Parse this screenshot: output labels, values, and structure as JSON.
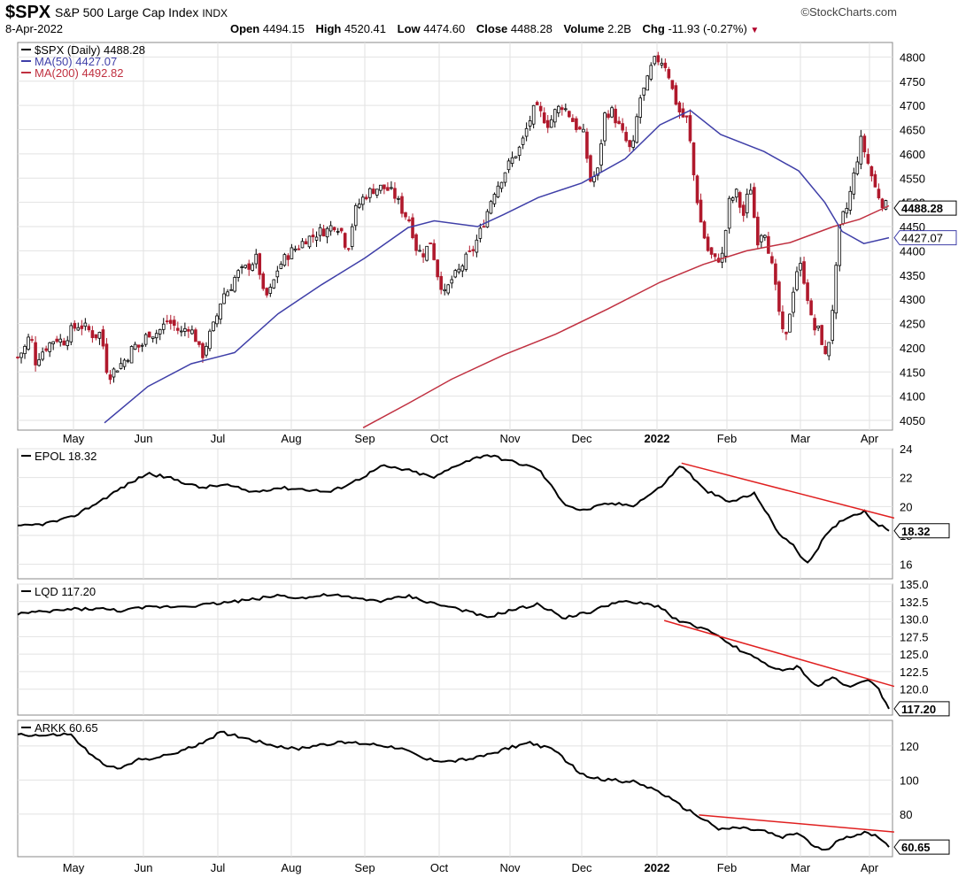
{
  "header": {
    "symbol": "$SPX",
    "name": "S&P 500 Large Cap Index",
    "exchange": "INDX",
    "credit": "©StockCharts.com",
    "date": "8-Apr-2022",
    "open_label": "Open",
    "open": "4494.15",
    "high_label": "High",
    "high": "4520.41",
    "low_label": "Low",
    "low": "4474.60",
    "close_label": "Close",
    "close": "4488.28",
    "volume_label": "Volume",
    "volume": "2.2B",
    "chg_label": "Chg",
    "chg": "-11.93 (-0.27%)",
    "chg_icon": "down-triangle-icon"
  },
  "chart_data": [
    {
      "type": "candlestick",
      "legend": [
        {
          "label": "$SPX (Daily) 4488.28",
          "color": "#000000"
        },
        {
          "label": "MA(50) 4427.07",
          "color": "#3f3fa8"
        },
        {
          "label": "MA(200) 4492.82",
          "color": "#c03040"
        }
      ],
      "ylim": [
        4030,
        4830
      ],
      "yticks": [
        4050,
        4100,
        4150,
        4200,
        4250,
        4300,
        4350,
        4400,
        4450,
        4500,
        4550,
        4600,
        4650,
        4700,
        4750,
        4800
      ],
      "ytick_labels": [
        "4050",
        "4100",
        "4150",
        "4200",
        "4250",
        "4300",
        "4350",
        "4400",
        "4450",
        "4500",
        "4550",
        "4600",
        "4650",
        "4700",
        "4750",
        "4800"
      ],
      "callouts": [
        {
          "label": "4488.28",
          "value": 4488.28
        },
        {
          "label": "4427.07",
          "value": 4427.07
        }
      ],
      "xlabels": [
        "May",
        "Jun",
        "Jul",
        "Aug",
        "Sep",
        "Oct",
        "Nov",
        "Dec",
        "2022",
        "Feb",
        "Mar",
        "Apr"
      ],
      "close_series": [
        [
          0,
          4180
        ],
        [
          8,
          4200
        ],
        [
          15,
          4230
        ],
        [
          20,
          4170
        ],
        [
          25,
          4185
        ],
        [
          32,
          4200
        ],
        [
          40,
          4215
        ],
        [
          47,
          4220
        ],
        [
          52,
          4210
        ],
        [
          62,
          4237
        ],
        [
          70,
          4247
        ],
        [
          80,
          4240
        ],
        [
          88,
          4223
        ],
        [
          96,
          4232
        ],
        [
          104,
          4140
        ],
        [
          112,
          4155
        ],
        [
          118,
          4165
        ],
        [
          126,
          4180
        ],
        [
          134,
          4205
        ],
        [
          142,
          4200
        ],
        [
          150,
          4232
        ],
        [
          158,
          4228
        ],
        [
          166,
          4240
        ],
        [
          172,
          4255
        ],
        [
          180,
          4246
        ],
        [
          188,
          4230
        ],
        [
          196,
          4246
        ],
        [
          204,
          4225
        ],
        [
          212,
          4180
        ],
        [
          220,
          4221
        ],
        [
          228,
          4255
        ],
        [
          236,
          4310
        ],
        [
          244,
          4320
        ],
        [
          252,
          4352
        ],
        [
          260,
          4360
        ],
        [
          268,
          4372
        ],
        [
          276,
          4386
        ],
        [
          284,
          4300
        ],
        [
          292,
          4320
        ],
        [
          300,
          4365
        ],
        [
          308,
          4385
        ],
        [
          316,
          4400
        ],
        [
          324,
          4410
        ],
        [
          332,
          4425
        ],
        [
          340,
          4430
        ],
        [
          348,
          4440
        ],
        [
          356,
          4442
        ],
        [
          364,
          4455
        ],
        [
          372,
          4447
        ],
        [
          380,
          4400
        ],
        [
          388,
          4480
        ],
        [
          396,
          4505
        ],
        [
          404,
          4520
        ],
        [
          412,
          4529
        ],
        [
          420,
          4531
        ],
        [
          428,
          4525
        ],
        [
          436,
          4510
        ],
        [
          444,
          4480
        ],
        [
          452,
          4462
        ],
        [
          460,
          4400
        ],
        [
          468,
          4395
        ],
        [
          476,
          4420
        ],
        [
          484,
          4350
        ],
        [
          492,
          4310
        ],
        [
          500,
          4340
        ],
        [
          508,
          4357
        ],
        [
          516,
          4382
        ],
        [
          524,
          4400
        ],
        [
          532,
          4434
        ],
        [
          540,
          4475
        ],
        [
          548,
          4520
        ],
        [
          556,
          4545
        ],
        [
          564,
          4573
        ],
        [
          572,
          4595
        ],
        [
          580,
          4616
        ],
        [
          588,
          4660
        ],
        [
          596,
          4696
        ],
        [
          604,
          4680
        ],
        [
          612,
          4660
        ],
        [
          620,
          4690
        ],
        [
          628,
          4701
        ],
        [
          636,
          4680
        ],
        [
          644,
          4655
        ],
        [
          652,
          4640
        ],
        [
          660,
          4545
        ],
        [
          668,
          4560
        ],
        [
          676,
          4680
        ],
        [
          684,
          4690
        ],
        [
          692,
          4660
        ],
        [
          700,
          4630
        ],
        [
          708,
          4600
        ],
        [
          716,
          4710
        ],
        [
          724,
          4740
        ],
        [
          732,
          4790
        ],
        [
          740,
          4796
        ],
        [
          748,
          4780
        ],
        [
          756,
          4720
        ],
        [
          764,
          4680
        ],
        [
          772,
          4670
        ],
        [
          780,
          4540
        ],
        [
          788,
          4450
        ],
        [
          796,
          4397
        ],
        [
          804,
          4380
        ],
        [
          812,
          4390
        ],
        [
          820,
          4500
        ],
        [
          828,
          4520
        ],
        [
          836,
          4470
        ],
        [
          844,
          4540
        ],
        [
          852,
          4420
        ],
        [
          860,
          4450
        ],
        [
          868,
          4380
        ],
        [
          876,
          4290
        ],
        [
          884,
          4200
        ],
        [
          892,
          4305
        ],
        [
          900,
          4380
        ],
        [
          908,
          4330
        ],
        [
          916,
          4240
        ],
        [
          924,
          4235
        ],
        [
          932,
          4170
        ],
        [
          940,
          4300
        ],
        [
          948,
          4460
        ],
        [
          956,
          4490
        ],
        [
          964,
          4560
        ],
        [
          972,
          4630
        ],
        [
          980,
          4580
        ],
        [
          988,
          4530
        ],
        [
          996,
          4500
        ],
        [
          1004,
          4488
        ]
      ],
      "ma50_series": [
        [
          100,
          4045
        ],
        [
          150,
          4120
        ],
        [
          200,
          4167
        ],
        [
          250,
          4190
        ],
        [
          300,
          4270
        ],
        [
          350,
          4330
        ],
        [
          400,
          4385
        ],
        [
          450,
          4448
        ],
        [
          480,
          4462
        ],
        [
          530,
          4450
        ],
        [
          560,
          4475
        ],
        [
          600,
          4510
        ],
        [
          650,
          4540
        ],
        [
          700,
          4590
        ],
        [
          740,
          4660
        ],
        [
          775,
          4690
        ],
        [
          810,
          4640
        ],
        [
          860,
          4605
        ],
        [
          900,
          4565
        ],
        [
          930,
          4500
        ],
        [
          950,
          4440
        ],
        [
          975,
          4415
        ],
        [
          1004,
          4427
        ]
      ],
      "ma200_series": [
        [
          398,
          4035
        ],
        [
          450,
          4085
        ],
        [
          500,
          4135
        ],
        [
          560,
          4185
        ],
        [
          620,
          4228
        ],
        [
          680,
          4280
        ],
        [
          740,
          4335
        ],
        [
          790,
          4372
        ],
        [
          840,
          4400
        ],
        [
          890,
          4417
        ],
        [
          940,
          4450
        ],
        [
          970,
          4465
        ],
        [
          1004,
          4493
        ]
      ]
    },
    {
      "type": "line",
      "legend": [
        {
          "label": "EPOL 18.32",
          "color": "#000000"
        }
      ],
      "ylim": [
        15,
        24
      ],
      "yticks": [
        16,
        18,
        20,
        22,
        24
      ],
      "ytick_labels": [
        "16",
        "18",
        "20",
        "22",
        "24"
      ],
      "callout": {
        "label": "18.32",
        "value": 18.32
      },
      "series_values": [
        [
          0,
          18.6
        ],
        [
          30,
          18.8
        ],
        [
          60,
          19.2
        ],
        [
          90,
          20.2
        ],
        [
          120,
          21.3
        ],
        [
          150,
          22.3
        ],
        [
          180,
          21.9
        ],
        [
          210,
          21.3
        ],
        [
          240,
          21.5
        ],
        [
          270,
          21.0
        ],
        [
          300,
          21.3
        ],
        [
          330,
          21.2
        ],
        [
          360,
          21.0
        ],
        [
          390,
          21.8
        ],
        [
          420,
          22.8
        ],
        [
          450,
          22.5
        ],
        [
          480,
          22.0
        ],
        [
          510,
          23.0
        ],
        [
          540,
          23.6
        ],
        [
          570,
          23.1
        ],
        [
          600,
          22.6
        ],
        [
          630,
          20.2
        ],
        [
          650,
          19.7
        ],
        [
          680,
          20.2
        ],
        [
          710,
          20.1
        ],
        [
          740,
          21.3
        ],
        [
          765,
          22.9
        ],
        [
          790,
          21.2
        ],
        [
          820,
          20.3
        ],
        [
          850,
          20.9
        ],
        [
          875,
          18.3
        ],
        [
          895,
          17.2
        ],
        [
          910,
          16.0
        ],
        [
          930,
          17.9
        ],
        [
          950,
          19.1
        ],
        [
          975,
          19.7
        ],
        [
          990,
          18.8
        ],
        [
          1004,
          18.32
        ]
      ],
      "trendline": [
        [
          765,
          23.0
        ],
        [
          1010,
          19.2
        ]
      ]
    },
    {
      "type": "line",
      "legend": [
        {
          "label": "LQD 117.20",
          "color": "#000000"
        }
      ],
      "ylim": [
        116.3,
        135.0
      ],
      "yticks": [
        120.0,
        122.5,
        125.0,
        127.5,
        130.0,
        132.5,
        135.0
      ],
      "ytick_labels": [
        "120.0",
        "122.5",
        "125.0",
        "127.5",
        "130.0",
        "132.5",
        "135.0"
      ],
      "callout": {
        "label": "117.20",
        "value": 117.2
      },
      "series_values": [
        [
          0,
          130.8
        ],
        [
          30,
          131.0
        ],
        [
          60,
          131.4
        ],
        [
          90,
          131.5
        ],
        [
          120,
          131.2
        ],
        [
          150,
          131.7
        ],
        [
          180,
          131.8
        ],
        [
          210,
          132.0
        ],
        [
          240,
          132.4
        ],
        [
          270,
          132.8
        ],
        [
          300,
          133.4
        ],
        [
          330,
          133.0
        ],
        [
          360,
          133.5
        ],
        [
          390,
          132.9
        ],
        [
          420,
          132.6
        ],
        [
          450,
          133.3
        ],
        [
          480,
          132.2
        ],
        [
          510,
          131.4
        ],
        [
          540,
          130.2
        ],
        [
          570,
          131.3
        ],
        [
          600,
          132.1
        ],
        [
          630,
          130.2
        ],
        [
          660,
          131.0
        ],
        [
          690,
          132.5
        ],
        [
          720,
          132.2
        ],
        [
          740,
          131.8
        ],
        [
          760,
          129.8
        ],
        [
          790,
          128.7
        ],
        [
          820,
          126.5
        ],
        [
          850,
          124.4
        ],
        [
          880,
          122.5
        ],
        [
          900,
          123.2
        ],
        [
          920,
          120.3
        ],
        [
          940,
          121.7
        ],
        [
          960,
          120.2
        ],
        [
          980,
          121.5
        ],
        [
          990,
          120.5
        ],
        [
          1004,
          117.2
        ]
      ],
      "trendline": [
        [
          745,
          129.8
        ],
        [
          1010,
          120.4
        ]
      ]
    },
    {
      "type": "line",
      "legend": [
        {
          "label": "ARKK 60.65",
          "color": "#000000"
        }
      ],
      "ylim": [
        55,
        135
      ],
      "yticks": [
        80,
        100,
        120
      ],
      "ytick_labels": [
        "80",
        "100",
        "120"
      ],
      "callout": {
        "label": "60.65",
        "value": 60.65
      },
      "series_values": [
        [
          0,
          127
        ],
        [
          30,
          126
        ],
        [
          60,
          127
        ],
        [
          90,
          112
        ],
        [
          115,
          106
        ],
        [
          140,
          112
        ],
        [
          170,
          114
        ],
        [
          200,
          119
        ],
        [
          235,
          128
        ],
        [
          260,
          125
        ],
        [
          290,
          121
        ],
        [
          320,
          118
        ],
        [
          350,
          121
        ],
        [
          380,
          122
        ],
        [
          410,
          121
        ],
        [
          440,
          119
        ],
        [
          470,
          112
        ],
        [
          500,
          111
        ],
        [
          530,
          113
        ],
        [
          560,
          118
        ],
        [
          590,
          122
        ],
        [
          620,
          117
        ],
        [
          650,
          103
        ],
        [
          680,
          100
        ],
        [
          710,
          99
        ],
        [
          740,
          93
        ],
        [
          760,
          86
        ],
        [
          790,
          77
        ],
        [
          810,
          71
        ],
        [
          830,
          72
        ],
        [
          860,
          70
        ],
        [
          880,
          66
        ],
        [
          900,
          69
        ],
        [
          915,
          62
        ],
        [
          930,
          58
        ],
        [
          950,
          66
        ],
        [
          975,
          69
        ],
        [
          995,
          66
        ],
        [
          1004,
          60.65
        ]
      ],
      "trendline": [
        [
          785,
          79.5
        ],
        [
          1010,
          69.5
        ]
      ]
    }
  ]
}
